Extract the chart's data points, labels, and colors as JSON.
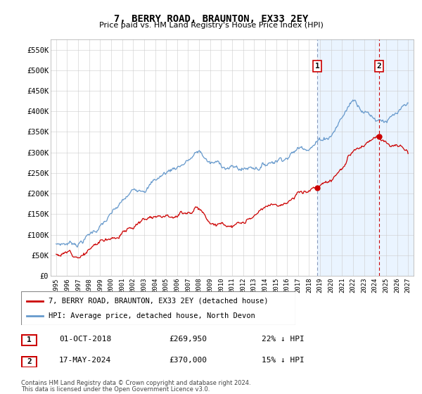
{
  "title": "7, BERRY ROAD, BRAUNTON, EX33 2EY",
  "subtitle": "Price paid vs. HM Land Registry's House Price Index (HPI)",
  "legend_line1": "7, BERRY ROAD, BRAUNTON, EX33 2EY (detached house)",
  "legend_line2": "HPI: Average price, detached house, North Devon",
  "hpi_color": "#6699cc",
  "price_color": "#cc0000",
  "vline1_color": "#8899bb",
  "vline2_color": "#cc0000",
  "shaded_color": "#ddeeff",
  "background_color": "#ffffff",
  "grid_color": "#cccccc",
  "ylim": [
    0,
    575000
  ],
  "yticks": [
    0,
    50000,
    100000,
    150000,
    200000,
    250000,
    300000,
    350000,
    400000,
    450000,
    500000,
    550000
  ],
  "ytick_labels": [
    "£0",
    "£50K",
    "£100K",
    "£150K",
    "£200K",
    "£250K",
    "£300K",
    "£350K",
    "£400K",
    "£450K",
    "£500K",
    "£550K"
  ],
  "xstart_year": 1995,
  "xend_year": 2027,
  "transaction1_year": 2018.75,
  "transaction1_price": 269950,
  "transaction1_label": "1",
  "transaction2_year": 2024.37,
  "transaction2_price": 370000,
  "transaction2_label": "2",
  "footer_line1": "Contains HM Land Registry data © Crown copyright and database right 2024.",
  "footer_line2": "This data is licensed under the Open Government Licence v3.0.",
  "table_row1_num": "1",
  "table_row1_date": "01-OCT-2018",
  "table_row1_price": "£269,950",
  "table_row1_hpi": "22% ↓ HPI",
  "table_row2_num": "2",
  "table_row2_date": "17-MAY-2024",
  "table_row2_price": "£370,000",
  "table_row2_hpi": "15% ↓ HPI"
}
